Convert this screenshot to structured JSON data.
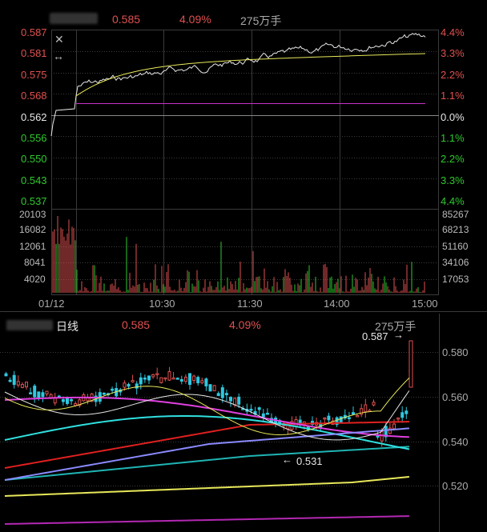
{
  "intraday": {
    "price": "0.585",
    "change_pct": "4.09%",
    "volume": "275万手",
    "price_ticks": [
      "0.587",
      "0.581",
      "0.575",
      "0.568",
      "0.562",
      "0.556",
      "0.550",
      "0.543",
      "0.537"
    ],
    "pct_ticks": [
      "4.4%",
      "3.3%",
      "2.2%",
      "1.1%",
      "0.0%",
      "1.1%",
      "2.2%",
      "3.3%",
      "4.4%"
    ],
    "vol_left_ticks": [
      "20103",
      "16082",
      "12061",
      "8041",
      "4020"
    ],
    "vol_right_ticks": [
      "85267",
      "68213",
      "51160",
      "34106",
      "17053"
    ],
    "time_ticks": [
      "01/12",
      "10:30",
      "11:30",
      "14:00",
      "15:00"
    ],
    "close_icon": "close-icon",
    "expand_icon": "expand-horizontal-icon"
  },
  "daily": {
    "title": "日线",
    "price": "0.585",
    "change_pct": "4.09%",
    "volume": "275万手",
    "high_marker": "0.587",
    "low_marker": "0.531",
    "price_ticks": [
      "0.580",
      "0.560",
      "0.540",
      "0.520"
    ]
  },
  "colors": {
    "up": "#e05050",
    "down": "#2ec82e",
    "flat": "#e8e8e8",
    "grid": "#3a3a3a",
    "avg_line": "#e8e85a",
    "prev_line": "#c832c8"
  }
}
